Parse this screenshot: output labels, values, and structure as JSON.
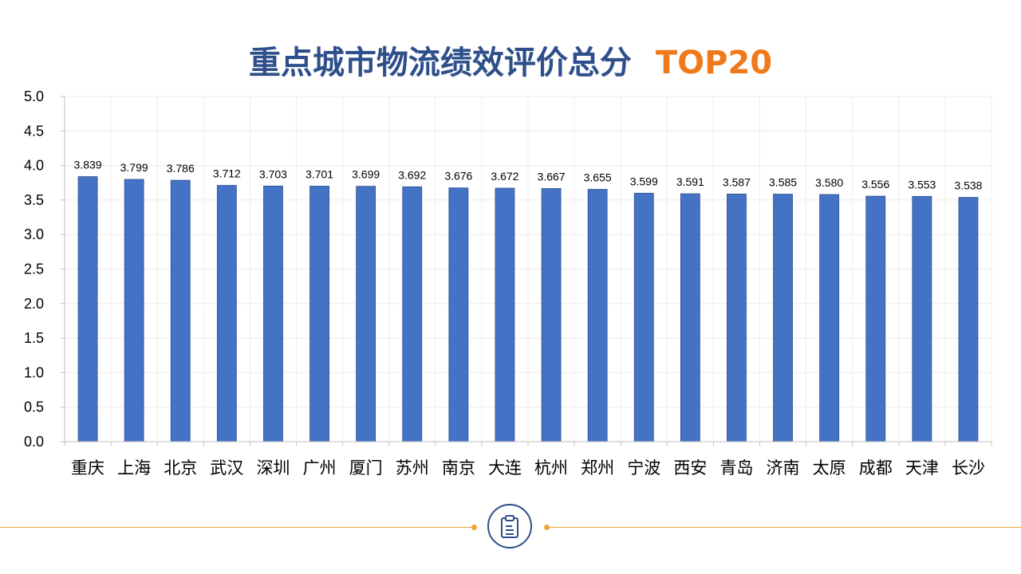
{
  "title": {
    "main": "重点城市物流绩效评价总分",
    "accent": "TOP20"
  },
  "colors": {
    "bar": "#4472c4",
    "title": "#2e4f8a",
    "accent": "#f07a1a",
    "footer_line": "#f0a53a"
  },
  "footer": {
    "icon": "clipboard-icon"
  },
  "chart_data": {
    "type": "bar",
    "categories": [
      "重庆",
      "上海",
      "北京",
      "武汉",
      "深圳",
      "广州",
      "厦门",
      "苏州",
      "南京",
      "大连",
      "杭州",
      "郑州",
      "宁波",
      "西安",
      "青岛",
      "济南",
      "太原",
      "成都",
      "天津",
      "长沙"
    ],
    "values": [
      3.839,
      3.799,
      3.786,
      3.712,
      3.703,
      3.701,
      3.699,
      3.692,
      3.676,
      3.672,
      3.667,
      3.655,
      3.599,
      3.591,
      3.587,
      3.585,
      3.58,
      3.556,
      3.553,
      3.538
    ],
    "data_labels": [
      "3.839",
      "3.799",
      "3.786",
      "3.712",
      "3.703",
      "3.701",
      "3.699",
      "3.692",
      "3.676",
      "3.672",
      "3.667",
      "3.655",
      "3.599",
      "3.591",
      "3.587",
      "3.585",
      "3.580",
      "3.556",
      "3.553",
      "3.538"
    ],
    "yticks": [
      "0.0",
      "0.5",
      "1.0",
      "1.5",
      "2.0",
      "2.5",
      "3.0",
      "3.5",
      "4.0",
      "4.5",
      "5.0"
    ],
    "ylim": [
      0,
      5
    ],
    "grid": true,
    "legend": "none"
  }
}
